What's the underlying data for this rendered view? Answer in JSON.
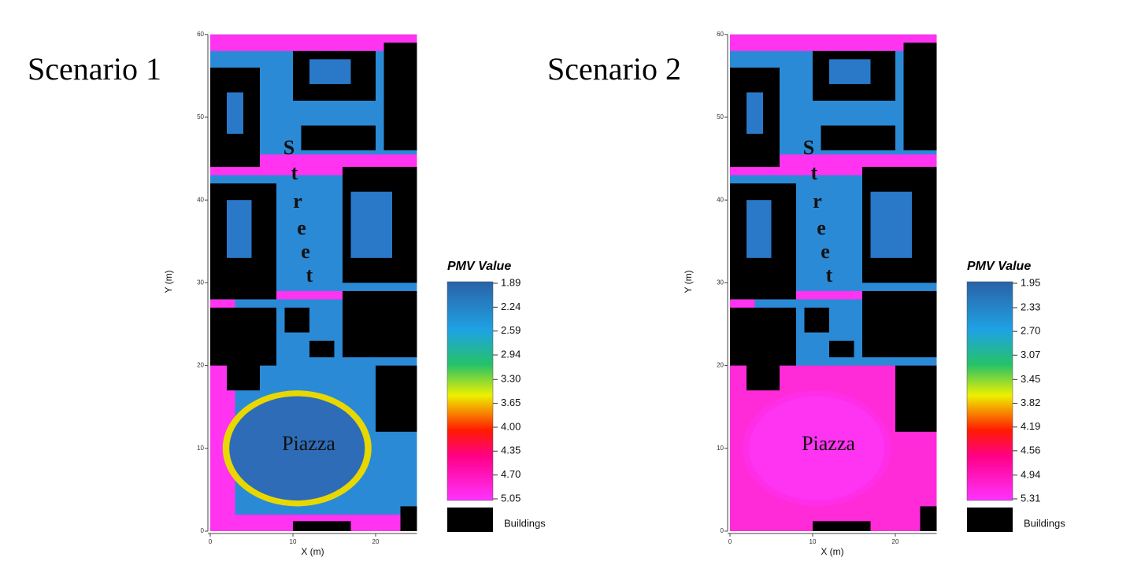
{
  "panels": [
    {
      "title": "Scenario 1",
      "x_label": "X (m)",
      "y_label": "Y (m)",
      "x_ticks": [
        0,
        10,
        20
      ],
      "y_ticks": [
        0,
        10,
        20,
        30,
        40,
        50,
        60
      ],
      "legend_title": "PMV Value",
      "legend_ticks": [
        1.89,
        2.24,
        2.59,
        2.94,
        {
          "value": 3.3,
          "label": "3.30"
        },
        3.65,
        {
          "value": 4.0,
          "label": "4.00"
        },
        4.35,
        {
          "value": 4.7,
          "label": "4.70"
        },
        5.05
      ],
      "buildings_label": "Buildings",
      "street_letters": [
        "S",
        "t",
        "r",
        "e",
        "e",
        "t"
      ],
      "piazza_label": "Piazza"
    },
    {
      "title": "Scenario 2",
      "x_label": "X (m)",
      "y_label": "Y (m)",
      "x_ticks": [
        0,
        10,
        20
      ],
      "y_ticks": [
        0,
        10,
        20,
        30,
        40,
        50,
        60
      ],
      "legend_title": "PMV Value",
      "legend_ticks": [
        1.95,
        2.33,
        {
          "value": 2.7,
          "label": "2.70"
        },
        3.07,
        3.45,
        3.82,
        4.19,
        4.56,
        4.94,
        5.31
      ],
      "buildings_label": "Buildings",
      "street_letters": [
        "S",
        "t",
        "r",
        "e",
        "e",
        "t"
      ],
      "piazza_label": "Piazza"
    }
  ]
}
